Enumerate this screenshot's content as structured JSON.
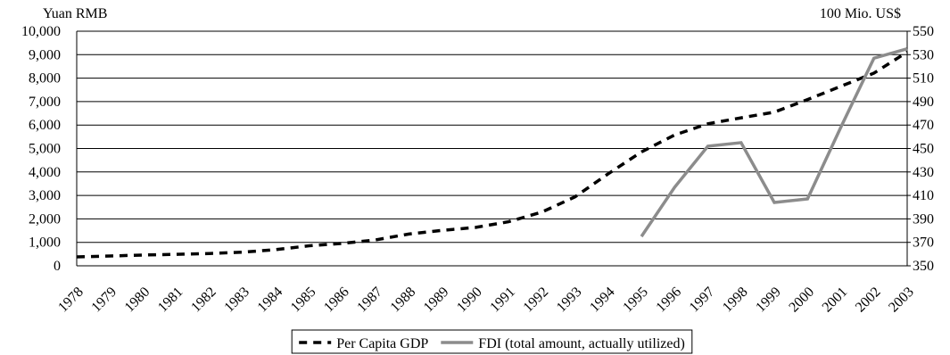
{
  "chart_data": {
    "type": "line",
    "y_label": "Yuan RMB",
    "y2_label": "100 Mio. US$",
    "categories": [
      "1978",
      "1979",
      "1980",
      "1981",
      "1982",
      "1983",
      "1984",
      "1985",
      "1986",
      "1987",
      "1988",
      "1989",
      "1990",
      "1991",
      "1992",
      "1993",
      "1994",
      "1995",
      "1996",
      "1997",
      "1998",
      "1999",
      "2000",
      "2001",
      "2002",
      "2003"
    ],
    "series": [
      {
        "name": "Per Capita GDP",
        "color": "#000000",
        "dashed": true,
        "values": [
          379,
          417,
          460,
          489,
          525,
          580,
          692,
          853,
          956,
          1104,
          1355,
          1512,
          1634,
          1879,
          2287,
          2939,
          3923,
          4854,
          5576,
          6054,
          6308,
          6551,
          7086,
          7651,
          8214,
          9111
        ]
      },
      {
        "name": "FDI (total amount, actually utilized)",
        "color": "#8c8c8c",
        "axis": "y2",
        "values": [
          null,
          null,
          null,
          null,
          null,
          null,
          null,
          null,
          null,
          null,
          null,
          null,
          null,
          null,
          null,
          null,
          null,
          375,
          417,
          452,
          455,
          404,
          407,
          468,
          527,
          535
        ]
      }
    ],
    "ylim": [
      0,
      10000
    ],
    "yticks": [
      0,
      {
        "value": 1000,
        "label": "1,000"
      },
      {
        "value": 2000,
        "label": "2,000"
      },
      {
        "value": 3000,
        "label": "3,000"
      },
      {
        "value": 4000,
        "label": "4,000"
      },
      {
        "value": 5000,
        "label": "5,000"
      },
      {
        "value": 6000,
        "label": "6,000"
      },
      {
        "value": 7000,
        "label": "7,000"
      },
      {
        "value": 8000,
        "label": "8,000"
      },
      {
        "value": 9000,
        "label": "9,000"
      },
      {
        "value": 10000,
        "label": "10,000"
      }
    ],
    "y2lim": [
      350,
      550
    ],
    "y2ticks": [
      350,
      370,
      390,
      410,
      430,
      450,
      470,
      490,
      510,
      530,
      550
    ],
    "grid": true,
    "legend": "bottom"
  }
}
